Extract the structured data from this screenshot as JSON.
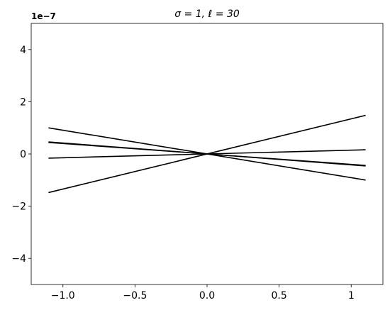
{
  "chart_data": {
    "type": "line",
    "title": "σ = 1, ℓ = 30",
    "y_offset_text": "1e−7",
    "x": [
      -1.1,
      1.1
    ],
    "series": [
      {
        "color": "#000000",
        "values": [
          1.0,
          -1.0
        ]
      },
      {
        "color": "#000000",
        "values": [
          0.46,
          -0.46
        ]
      },
      {
        "color": "#000000",
        "values": [
          0.44,
          -0.44
        ]
      },
      {
        "color": "#000000",
        "values": [
          -0.16,
          0.16
        ]
      },
      {
        "color": "#000000",
        "values": [
          -1.48,
          1.48
        ]
      }
    ],
    "xlim": [
      -1.22,
      1.22
    ],
    "ylim": [
      -5,
      5
    ],
    "xticks": [
      {
        "value": -1.0,
        "label": "−1.0"
      },
      {
        "value": -0.5,
        "label": "−0.5"
      },
      {
        "value": 0.0,
        "label": "0.0"
      },
      0.5,
      1.0
    ],
    "yticks": [
      {
        "value": -4,
        "label": "−4"
      },
      {
        "value": -2,
        "label": "−2"
      },
      0,
      2,
      4
    ],
    "grid": false
  }
}
